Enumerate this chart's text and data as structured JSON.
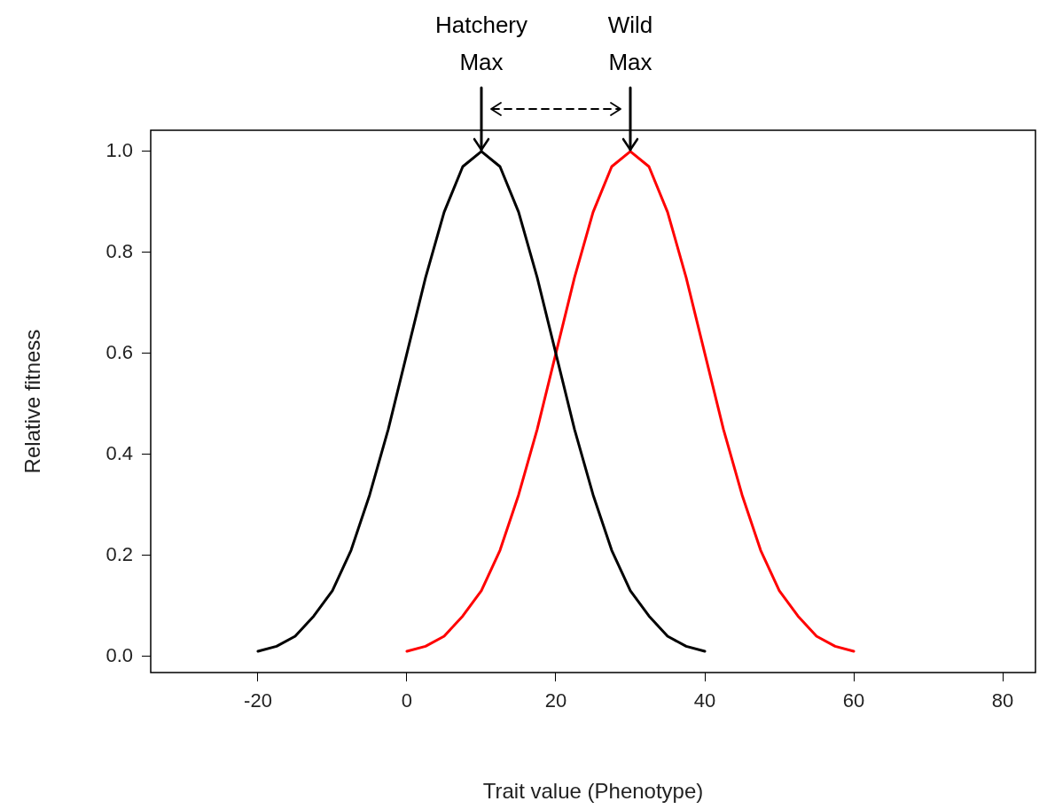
{
  "chart_data": {
    "type": "line",
    "xlabel": "Trait value (Phenotype)",
    "ylabel": "Relative fitness",
    "xlim": [
      -34.4,
      84.4
    ],
    "xticks": [
      -20,
      0,
      20,
      40,
      60,
      80
    ],
    "ylim": [
      -0.032,
      1.042
    ],
    "yticks": [
      {
        "value": 0,
        "label": "0.0"
      },
      0.2,
      0.4,
      0.6,
      0.8,
      {
        "value": 1,
        "label": "1.0"
      }
    ],
    "grid": false,
    "legend": false,
    "marker": "none",
    "line_style": "solid",
    "series": [
      {
        "color": "#000000",
        "x": [
          -20,
          -17.5,
          -15,
          -12.5,
          -10,
          -7.5,
          -5,
          -2.5,
          0,
          2.5,
          5,
          7.5,
          10,
          12.5,
          15,
          17.5,
          20,
          22.5,
          25,
          27.5,
          30,
          32.5,
          35,
          37.5,
          40
        ],
        "values": [
          0.01,
          0.02,
          0.04,
          0.08,
          0.13,
          0.21,
          0.32,
          0.45,
          0.6,
          0.75,
          0.88,
          0.97,
          1.0,
          0.97,
          0.88,
          0.75,
          0.6,
          0.45,
          0.32,
          0.21,
          0.13,
          0.08,
          0.04,
          0.02,
          0.01
        ]
      },
      {
        "color": "#ff0000",
        "x": [
          0,
          2.5,
          5,
          7.5,
          10,
          12.5,
          15,
          17.5,
          20,
          22.5,
          25,
          27.5,
          30,
          32.5,
          35,
          37.5,
          40,
          42.5,
          45,
          47.5,
          50,
          52.5,
          55,
          57.5,
          60
        ],
        "values": [
          0.01,
          0.02,
          0.04,
          0.08,
          0.13,
          0.21,
          0.32,
          0.45,
          0.6,
          0.75,
          0.88,
          0.97,
          1.0,
          0.97,
          0.88,
          0.75,
          0.6,
          0.45,
          0.32,
          0.21,
          0.13,
          0.08,
          0.04,
          0.02,
          0.01
        ]
      }
    ],
    "annotations": [
      {
        "text": "Hatchery Max",
        "x": 10,
        "y": 1.0
      },
      {
        "text": "Wild Max",
        "x": 30,
        "y": 1.0
      }
    ]
  }
}
